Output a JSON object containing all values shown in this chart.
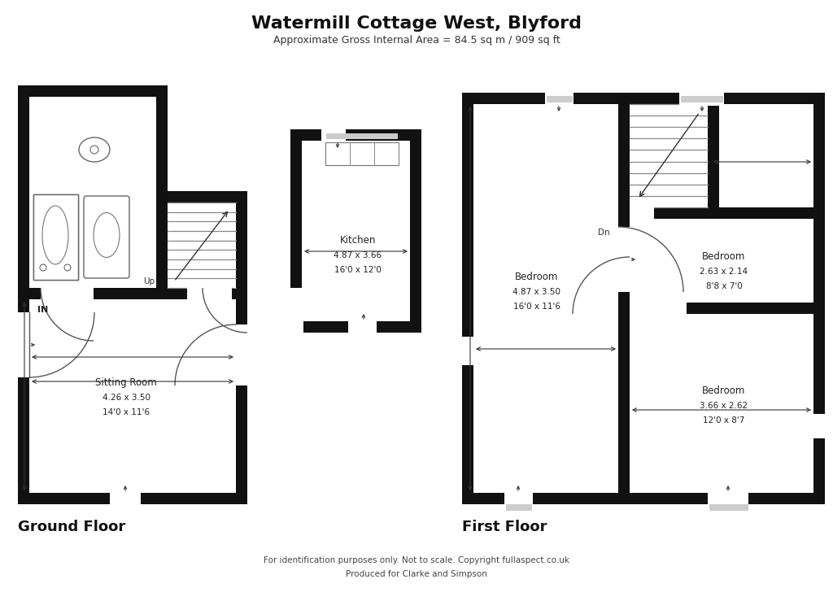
{
  "title": "Watermill Cottage West, Blyford",
  "subtitle": "Approximate Gross Internal Area = 84.5 sq m / 909 sq ft",
  "footer1": "For identification purposes only. Not to scale. Copyright fullaspect.co.uk",
  "footer2": "Produced for Clarke and Simpson",
  "ground_floor_label": "Ground Floor",
  "first_floor_label": "First Floor",
  "bg_color": "#ffffff",
  "wall_color": "#111111"
}
